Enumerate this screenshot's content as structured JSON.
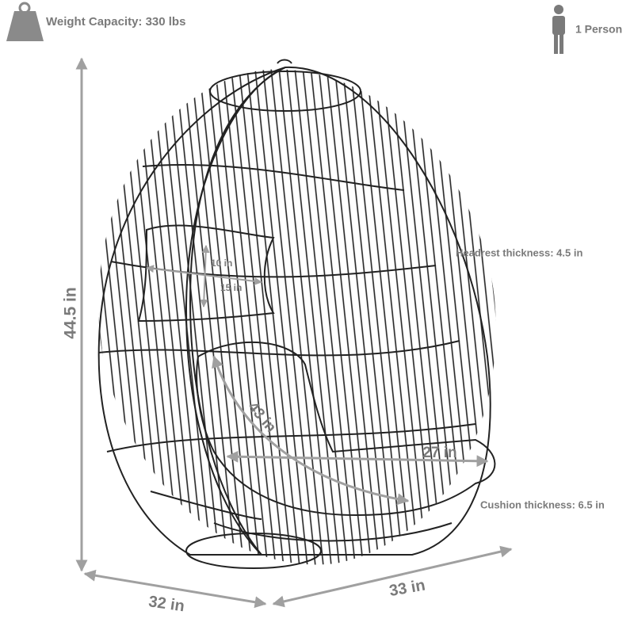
{
  "header": {
    "weight_capacity": "Weight Capacity: 330 lbs",
    "occupancy": "1 Person"
  },
  "dimensions": {
    "height": "44.5 in",
    "headrest_height": "10 in",
    "headrest_width": "15 in",
    "headrest_thickness": "Headrest thickness: 4.5 in",
    "seat_depth": "43 in",
    "seat_width": "27 in",
    "cushion_thickness": "Cushion thickness: 6.5 in",
    "base_depth": "32 in",
    "base_width": "33 in"
  }
}
